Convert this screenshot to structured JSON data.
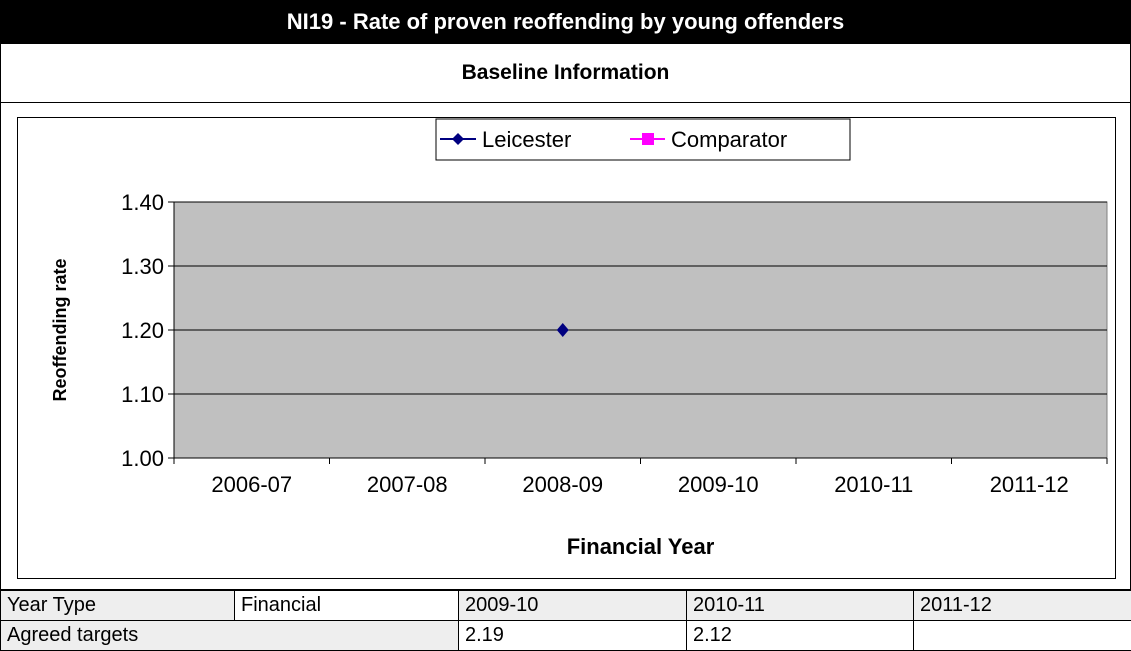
{
  "header": {
    "title": "NI19 - Rate of proven reoffending by young offenders",
    "subtitle": "Baseline Information"
  },
  "chart_data": {
    "type": "line",
    "categories": [
      "2006-07",
      "2007-08",
      "2008-09",
      "2009-10",
      "2010-11",
      "2011-12"
    ],
    "series": [
      {
        "name": "Leicester",
        "values": [
          null,
          null,
          1.2,
          null,
          null,
          null
        ],
        "color": "#000080",
        "marker": "diamond"
      },
      {
        "name": "Comparator",
        "values": [
          null,
          null,
          null,
          null,
          null,
          null
        ],
        "color": "#ff00ff",
        "marker": "square"
      }
    ],
    "xlabel": "Financial Year",
    "ylabel": "Reoffending rate",
    "ylim": [
      1.0,
      1.4
    ],
    "yticks": [
      1.0,
      1.1,
      1.2,
      1.3,
      1.4
    ],
    "ytick_labels": [
      "1.00",
      "1.10",
      "1.20",
      "1.30",
      "1.40"
    ],
    "grid": true,
    "plot_background": "#c0c0c0",
    "legend_position": "top-center"
  },
  "footer_table": {
    "rows": [
      {
        "label": "Year Type",
        "type_value": "Financial",
        "years": [
          "2009-10",
          "2010-11",
          "2011-12"
        ]
      },
      {
        "label": "Agreed targets",
        "values": [
          "2.19",
          "2.12",
          ""
        ]
      }
    ]
  }
}
